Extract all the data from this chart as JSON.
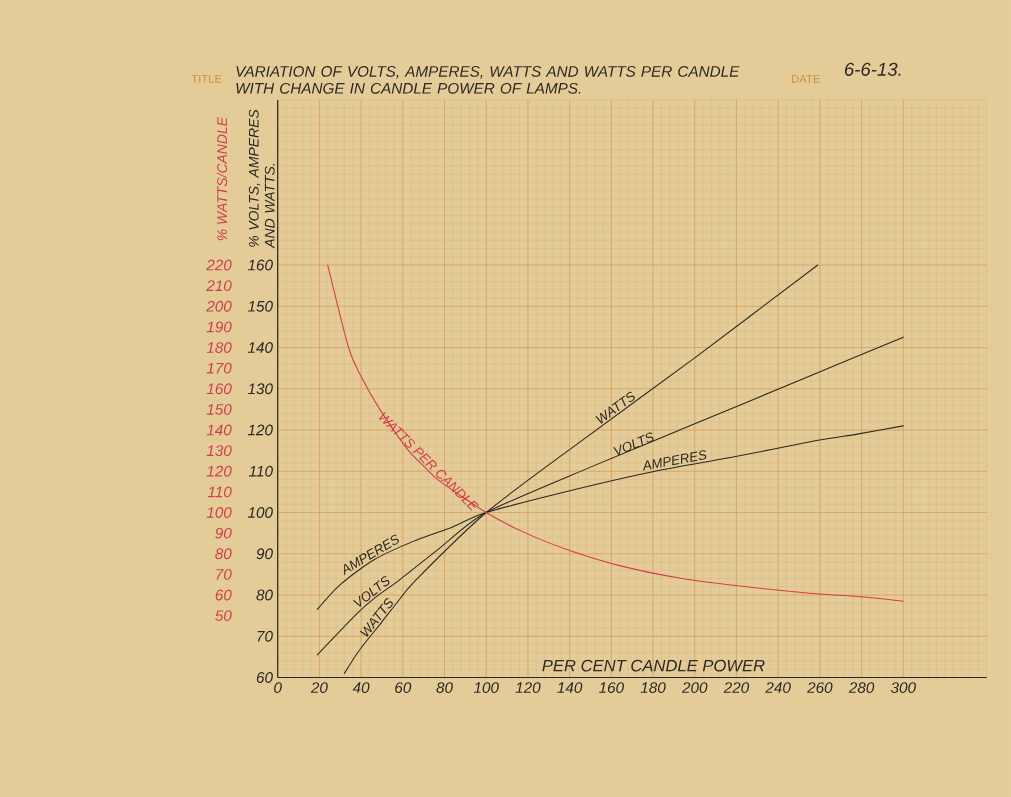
{
  "chart_data": {
    "type": "line",
    "title": "VARIATION OF VOLTS, AMPERES, WATTS AND WATTS PER CANDLE WITH CHANGE IN CANDLE POWER OF LAMPS.",
    "xlabel": "PER CENT CANDLE POWER",
    "ylabel": "% VOLTS, AMPERES AND WATTS.",
    "y2label": "% WATTS/CANDLE",
    "xlim": [
      0,
      340
    ],
    "xticks": [
      0,
      20,
      40,
      60,
      80,
      100,
      120,
      140,
      160,
      180,
      200,
      220,
      240,
      260,
      280,
      300
    ],
    "ylim": [
      60,
      200
    ],
    "yticks": [
      60,
      70,
      80,
      90,
      100,
      110,
      120,
      130,
      140,
      150,
      160
    ],
    "y2lim": [
      20,
      300
    ],
    "y2ticks": [
      50,
      60,
      70,
      80,
      90,
      100,
      110,
      120,
      130,
      140,
      150,
      160,
      170,
      180,
      190,
      200,
      210,
      220
    ],
    "grid": true,
    "series": [
      {
        "name": "AMPERES",
        "color": "#2b2723",
        "x": [
          19,
          30,
          46,
          65,
          84,
          100,
          146,
          181,
          219,
          259,
          278,
          300
        ],
        "values": [
          76.5,
          82.5,
          88.5,
          93,
          96.5,
          100,
          106,
          110,
          113.5,
          117.5,
          119,
          121
        ]
      },
      {
        "name": "VOLTS",
        "color": "#2b2723",
        "x": [
          19,
          38,
          47,
          58,
          78,
          100,
          150,
          200,
          250,
          300
        ],
        "values": [
          65.5,
          75.5,
          79.5,
          83.5,
          91.5,
          100,
          111,
          121.5,
          132,
          142.5
        ]
      },
      {
        "name": "WATTS",
        "color": "#2b2723",
        "x": [
          32,
          39,
          50,
          57,
          66,
          100,
          146,
          200,
          259
        ],
        "values": [
          61,
          66.5,
          73.5,
          78,
          83.5,
          100,
          117.5,
          137.5,
          160
        ]
      },
      {
        "name": "WATTS PER CANDLE",
        "color": "#d43c4c",
        "axis": "y2",
        "x": [
          24,
          34,
          40,
          49,
          62,
          70,
          78,
          100,
          119,
          139,
          165,
          194,
          225,
          254,
          281,
          300
        ],
        "values": [
          220,
          180,
          166,
          150,
          131,
          122.5,
          115,
          100,
          90,
          82,
          74,
          68,
          64,
          61,
          59,
          57
        ]
      }
    ],
    "annotations": [
      "TITLE",
      "DATE",
      "6-6-13.",
      {
        "text": "WATTS",
        "x": 164,
        "y": 124
      },
      {
        "text": "VOLTS",
        "x": 172,
        "y": 115
      },
      {
        "text": "AMPERES",
        "x": 191,
        "y": 111
      }
    ]
  }
}
